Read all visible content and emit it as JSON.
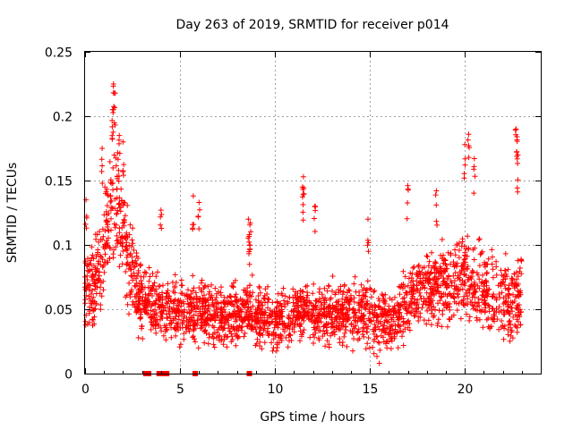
{
  "chart_data": {
    "type": "scatter",
    "title": "Day 263 of 2019, SRMTID for receiver p014",
    "xlabel": "GPS time / hours",
    "ylabel": "SRMTID / TECUs",
    "xlim": [
      0,
      24
    ],
    "ylim": [
      0,
      0.25
    ],
    "grid": true,
    "marker": "+",
    "point_color": "#ff0000",
    "x_ticks": [
      0,
      5,
      10,
      15,
      20
    ],
    "x_tick_labels": [
      "0",
      "5",
      "10",
      "15",
      "20"
    ],
    "y_ticks": [
      0,
      0.05,
      0.1,
      0.15,
      0.2,
      0.25
    ],
    "y_tick_labels": [
      "0",
      "0.05",
      "0.1",
      "0.15",
      "0.2",
      "0.25"
    ],
    "zero_markers_x": [
      3.2,
      3.35,
      3.9,
      4.05,
      4.3,
      5.8,
      8.65
    ],
    "series": [
      {
        "name": "SRMTID",
        "approximate_envelope": {
          "x": [
            0,
            0.5,
            1.0,
            1.5,
            1.8,
            2.2,
            2.6,
            3.0,
            3.5,
            4.0,
            5.0,
            6.0,
            7.0,
            8.0,
            8.7,
            9.0,
            10.0,
            11.0,
            11.5,
            12.0,
            13.0,
            14.0,
            15.0,
            15.5,
            16.0,
            16.5,
            17.0,
            17.5,
            18.0,
            19.0,
            20.0,
            20.3,
            21.0,
            22.0,
            22.5,
            23.0
          ],
          "median": [
            0.07,
            0.065,
            0.1,
            0.14,
            0.12,
            0.09,
            0.07,
            0.055,
            0.055,
            0.05,
            0.05,
            0.048,
            0.045,
            0.045,
            0.05,
            0.045,
            0.042,
            0.045,
            0.048,
            0.045,
            0.047,
            0.048,
            0.047,
            0.043,
            0.04,
            0.045,
            0.055,
            0.065,
            0.07,
            0.068,
            0.075,
            0.07,
            0.065,
            0.06,
            0.055,
            0.06
          ],
          "spread": [
            0.03,
            0.03,
            0.04,
            0.05,
            0.04,
            0.035,
            0.03,
            0.025,
            0.025,
            0.022,
            0.022,
            0.022,
            0.02,
            0.02,
            0.02,
            0.02,
            0.02,
            0.02,
            0.022,
            0.02,
            0.022,
            0.022,
            0.022,
            0.022,
            0.022,
            0.022,
            0.025,
            0.025,
            0.025,
            0.028,
            0.03,
            0.03,
            0.028,
            0.028,
            0.028,
            0.03
          ]
        },
        "spikes": [
          {
            "x": 1.5,
            "y": 0.225
          },
          {
            "x": 1.55,
            "y": 0.218
          },
          {
            "x": 1.45,
            "y": 0.205
          },
          {
            "x": 1.8,
            "y": 0.185
          },
          {
            "x": 2.0,
            "y": 0.18
          },
          {
            "x": 0.9,
            "y": 0.175
          },
          {
            "x": 8.6,
            "y": 0.12
          },
          {
            "x": 8.7,
            "y": 0.117
          },
          {
            "x": 8.65,
            "y": 0.108
          },
          {
            "x": 11.5,
            "y": 0.153
          },
          {
            "x": 11.45,
            "y": 0.145
          },
          {
            "x": 12.1,
            "y": 0.13
          },
          {
            "x": 20.2,
            "y": 0.186
          },
          {
            "x": 20.0,
            "y": 0.178
          },
          {
            "x": 20.5,
            "y": 0.167
          },
          {
            "x": 22.7,
            "y": 0.19
          },
          {
            "x": 22.75,
            "y": 0.184
          },
          {
            "x": 22.8,
            "y": 0.17
          },
          {
            "x": 17.0,
            "y": 0.146
          },
          {
            "x": 18.5,
            "y": 0.142
          },
          {
            "x": 5.7,
            "y": 0.138
          },
          {
            "x": 6.0,
            "y": 0.133
          },
          {
            "x": 4.0,
            "y": 0.127
          },
          {
            "x": 0.05,
            "y": 0.135
          },
          {
            "x": 15.5,
            "y": 0.008
          },
          {
            "x": 14.9,
            "y": 0.12
          }
        ]
      }
    ]
  }
}
